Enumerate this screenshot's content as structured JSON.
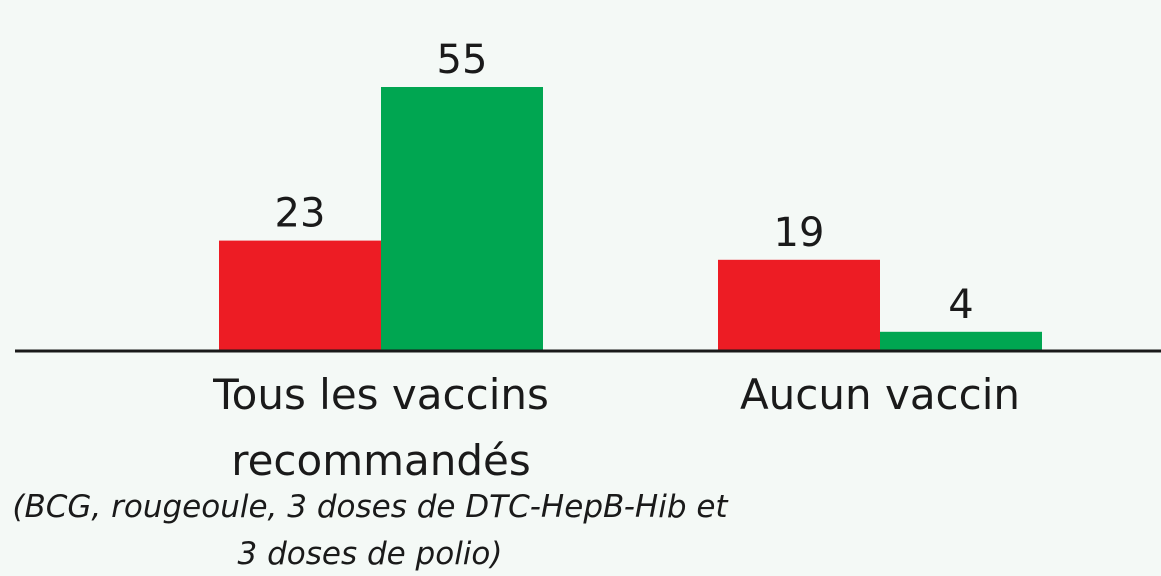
{
  "chart_data": {
    "type": "bar",
    "categories": [
      "Tous les vaccins recommandés",
      "Aucun vaccin"
    ],
    "annotation": "(BCG, rougeoule, 3 doses de DTC-HepB-Hib et 3 doses de polio)",
    "series": [
      {
        "color": "#ed1c24",
        "values": [
          23,
          19
        ]
      },
      {
        "color": "#00a651",
        "values": [
          55,
          4
        ]
      }
    ],
    "ylim": [
      0,
      60
    ]
  }
}
